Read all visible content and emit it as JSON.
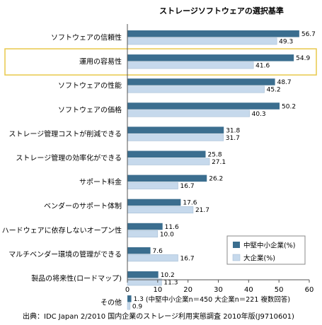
{
  "chart_data": {
    "type": "bar",
    "orientation": "horizontal",
    "title": "ストレージソフトウェアの選択基準",
    "categories": [
      "ソフトウェアの信頼性",
      "運用の容易性",
      "ソフトウェアの性能",
      "ソフトウェアの価格",
      "ストレージ管理コストが削減できる",
      "ストレージ管理の効率化ができる",
      "サポート料金",
      "ベンダーのサポート体制",
      "ハードウェアに依存しないオープン性",
      "マルチベンダー環境の管理ができる",
      "製品の将来性(ロードマップ)",
      "その他"
    ],
    "series": [
      {
        "name": "中堅中小企業(%)",
        "color": "#3b6e8f",
        "values": [
          56.7,
          54.9,
          48.7,
          50.2,
          31.8,
          25.8,
          26.2,
          17.6,
          11.6,
          7.6,
          10.2,
          1.3
        ]
      },
      {
        "name": "大企業(%)",
        "color": "#c6d9ec",
        "values": [
          49.3,
          41.6,
          45.2,
          40.3,
          31.7,
          27.1,
          16.7,
          21.7,
          10.0,
          16.7,
          11.3,
          0.9
        ]
      }
    ],
    "value_labels": [
      [
        "56.7",
        "54.9",
        "48.7",
        "50.2",
        "31.8",
        "25.8",
        "26.2",
        "17.6",
        "11.6",
        "7.6",
        "10.2",
        "1.3"
      ],
      [
        "49.3",
        "41.6",
        "45.2",
        "40.3",
        "31.7",
        "27.1",
        "16.7",
        "21.7",
        "10.0",
        "16.7",
        "11.3",
        "0.9"
      ]
    ],
    "xlim": [
      0,
      60
    ],
    "xticks": [
      "0",
      "10",
      "20",
      "30",
      "40",
      "50",
      "60"
    ],
    "highlighted_category": "運用の容易性",
    "highlight_color": "#e8c84a",
    "legend_position": "bottom-right",
    "grid": false,
    "sample_note": "(中堅中小企業n＝450 大企業n＝221 複数回答)"
  },
  "source": "出典：IDC Japan 2/2010 国内企業のストレージ利用実態調査 2010年版(J9710601)"
}
